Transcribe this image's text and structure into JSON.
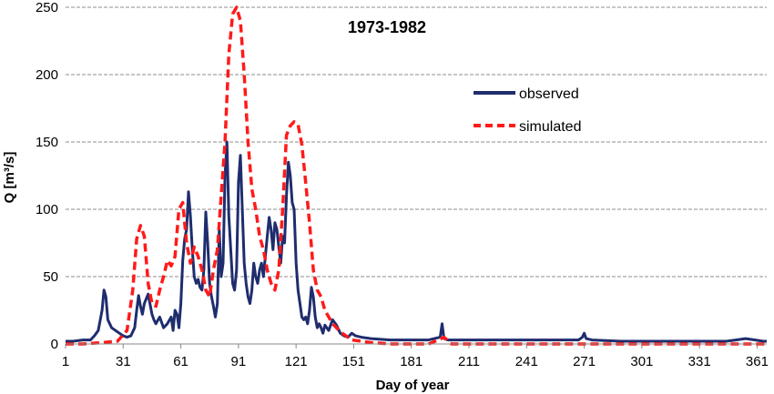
{
  "chart_data": {
    "type": "line",
    "title": "1973-1982",
    "xlabel": "Day of year",
    "ylabel": "Q [m³/s]",
    "xlim": [
      1,
      366
    ],
    "ylim": [
      0,
      250
    ],
    "y_ticks": [
      0,
      50,
      100,
      150,
      200,
      250
    ],
    "x_ticks": [
      1,
      31,
      61,
      91,
      121,
      151,
      181,
      211,
      241,
      271,
      301,
      331,
      361
    ],
    "grid": "horizontal dashed",
    "legend_position": "upper-right",
    "series": [
      {
        "name": "observed",
        "color": "#1f2d6e",
        "style": "solid",
        "x": [
          1,
          5,
          10,
          14,
          16,
          18,
          20,
          21,
          22,
          23,
          25,
          27,
          29,
          31,
          33,
          35,
          37,
          38,
          39,
          40,
          41,
          42,
          44,
          46,
          47,
          48,
          50,
          52,
          54,
          56,
          57,
          58,
          59,
          60,
          61,
          62,
          63,
          64,
          65,
          66,
          67,
          68,
          69,
          70,
          71,
          72,
          73,
          74,
          75,
          76,
          77,
          78,
          79,
          80,
          81,
          82,
          83,
          84,
          85,
          86,
          87,
          88,
          89,
          90,
          91,
          92,
          93,
          94,
          95,
          96,
          97,
          98,
          99,
          100,
          101,
          102,
          103,
          104,
          105,
          106,
          107,
          108,
          109,
          110,
          111,
          112,
          113,
          114,
          115,
          116,
          117,
          118,
          119,
          120,
          121,
          122,
          123,
          124,
          125,
          126,
          127,
          128,
          129,
          130,
          131,
          132,
          133,
          134,
          135,
          136,
          138,
          140,
          142,
          144,
          146,
          148,
          150,
          152,
          155,
          160,
          170,
          180,
          190,
          196,
          197,
          198,
          200,
          210,
          230,
          250,
          268,
          270,
          271,
          272,
          275,
          290,
          310,
          330,
          340,
          345,
          350,
          355,
          360,
          364,
          366
        ],
        "y": [
          2,
          2,
          3,
          3,
          6,
          10,
          25,
          40,
          35,
          18,
          12,
          10,
          8,
          6,
          5,
          6,
          12,
          25,
          36,
          28,
          22,
          30,
          37,
          22,
          18,
          15,
          20,
          12,
          15,
          20,
          10,
          25,
          22,
          12,
          30,
          62,
          78,
          85,
          113,
          95,
          70,
          50,
          45,
          48,
          42,
          40,
          55,
          98,
          75,
          45,
          35,
          28,
          20,
          30,
          85,
          50,
          60,
          125,
          150,
          95,
          70,
          45,
          40,
          55,
          120,
          140,
          100,
          60,
          45,
          35,
          30,
          40,
          60,
          50,
          45,
          55,
          60,
          50,
          65,
          80,
          94,
          85,
          70,
          90,
          85,
          72,
          60,
          80,
          75,
          110,
          135,
          125,
          105,
          100,
          60,
          40,
          30,
          20,
          18,
          20,
          15,
          25,
          42,
          35,
          20,
          12,
          15,
          12,
          8,
          14,
          10,
          18,
          14,
          8,
          6,
          5,
          8,
          6,
          5,
          4,
          3,
          3,
          3,
          5,
          15,
          4,
          3,
          3,
          3,
          3,
          3,
          5,
          8,
          4,
          3,
          2,
          2,
          2,
          2,
          2,
          3,
          4,
          3,
          2,
          2
        ]
      },
      {
        "name": "simulated",
        "color": "#ff1a1a",
        "style": "dashed",
        "x": [
          1,
          10,
          20,
          28,
          33,
          36,
          38,
          40,
          42,
          44,
          46,
          48,
          50,
          52,
          54,
          56,
          58,
          60,
          62,
          64,
          66,
          68,
          70,
          72,
          74,
          76,
          78,
          80,
          82,
          84,
          86,
          88,
          90,
          92,
          94,
          96,
          98,
          100,
          102,
          104,
          106,
          108,
          110,
          112,
          114,
          116,
          118,
          120,
          122,
          124,
          126,
          128,
          130,
          132,
          134,
          136,
          138,
          140,
          142,
          144,
          146,
          148,
          150,
          155,
          160,
          170,
          190,
          195,
          198,
          202,
          215,
          240,
          270,
          300,
          330,
          366
        ],
        "y": [
          0,
          0,
          1,
          2,
          10,
          40,
          78,
          88,
          80,
          45,
          30,
          28,
          40,
          50,
          62,
          58,
          65,
          100,
          105,
          75,
          60,
          72,
          65,
          55,
          40,
          35,
          55,
          70,
          110,
          150,
          215,
          245,
          250,
          240,
          200,
          150,
          115,
          100,
          80,
          70,
          55,
          45,
          40,
          55,
          100,
          155,
          162,
          165,
          163,
          148,
          120,
          90,
          55,
          40,
          35,
          25,
          20,
          15,
          12,
          9,
          7,
          5,
          3,
          2,
          1,
          0,
          0,
          3,
          5,
          0,
          0,
          0,
          0,
          0,
          0,
          0
        ]
      }
    ]
  }
}
